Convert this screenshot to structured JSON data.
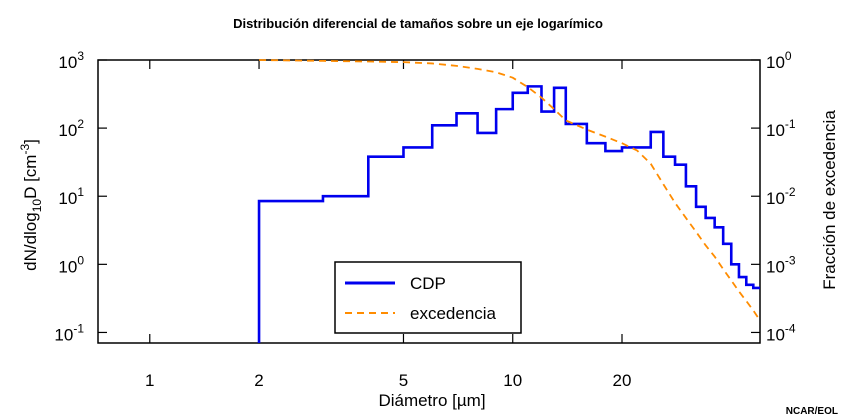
{
  "chart_data": {
    "type": "line",
    "title": "Distribución diferencial de tamaños sobre un eje logarímico",
    "xlabel": "Diámetro [µm]",
    "xlabel_pre": "Diámetro [",
    "xlabel_mu": "µ",
    "xlabel_post": "m]",
    "ylabel_left": "dN/dlog10D [cm-3]",
    "ylabel_left_parts": {
      "base": "dN/dlog",
      "sub": "10",
      "mid": "D [cm",
      "sup": "-3",
      "end": "]"
    },
    "ylabel_right": "Fracción de excedencia",
    "x_scale": "log",
    "y_scale": "log",
    "y2_scale": "log",
    "xlim": [
      0.72,
      48
    ],
    "ylim": [
      0.07,
      1000
    ],
    "y2lim": [
      7e-05,
      1
    ],
    "x_ticks": [
      1,
      2,
      5,
      10,
      20
    ],
    "x_ticklabels": [
      "1",
      "2",
      "5",
      "10",
      "20"
    ],
    "y_ticks": [
      {
        "value": 1000,
        "base": "10",
        "exp": "3"
      },
      {
        "value": 100,
        "base": "10",
        "exp": "2"
      },
      {
        "value": 10,
        "base": "10",
        "exp": "1"
      },
      {
        "value": 1,
        "base": "10",
        "exp": "0"
      },
      {
        "value": 0.1,
        "base": "10",
        "exp": "-1"
      }
    ],
    "y2_ticks": [
      {
        "value": 1,
        "base": "10",
        "exp": "0"
      },
      {
        "value": 0.1,
        "base": "10",
        "exp": "-1"
      },
      {
        "value": 0.01,
        "base": "10",
        "exp": "-2"
      },
      {
        "value": 0.001,
        "base": "10",
        "exp": "-3"
      },
      {
        "value": 0.0001,
        "base": "10",
        "exp": "-4"
      }
    ],
    "grid": false,
    "legend_position": "bottom-center",
    "series": [
      {
        "name": "CDP",
        "style": "step",
        "axis": "left",
        "color": "#0000ee",
        "bin_edges": [
          2,
          3,
          4,
          5,
          6,
          7,
          8,
          9,
          10,
          11,
          12,
          13,
          14,
          16,
          18,
          20,
          22,
          24,
          26,
          28,
          30,
          32,
          34,
          36,
          38,
          40,
          42,
          44,
          46,
          48
        ],
        "values": [
          8.5,
          10,
          38,
          52,
          110,
          165,
          85,
          190,
          330,
          410,
          175,
          390,
          115,
          60,
          46,
          52,
          52,
          88,
          38,
          29,
          14,
          7,
          4.8,
          3.5,
          2,
          1,
          0.65,
          0.5,
          0.45
        ]
      },
      {
        "name": "excedencia",
        "style": "dashed",
        "axis": "right",
        "color": "#ff8c00",
        "x": [
          2,
          3,
          4,
          5,
          6,
          7,
          8,
          9,
          10,
          11,
          12,
          13,
          14,
          16,
          18,
          20,
          22,
          24,
          26,
          28,
          30,
          32,
          34,
          36,
          38,
          40,
          42,
          44,
          46,
          48
        ],
        "y": [
          1.0,
          0.97,
          0.95,
          0.93,
          0.89,
          0.82,
          0.74,
          0.66,
          0.55,
          0.4,
          0.28,
          0.19,
          0.13,
          0.095,
          0.075,
          0.06,
          0.047,
          0.03,
          0.015,
          0.008,
          0.0048,
          0.003,
          0.0019,
          0.0013,
          0.00085,
          0.00058,
          0.0004,
          0.00029,
          0.00021,
          0.00015
        ]
      }
    ]
  },
  "legend": {
    "items": [
      {
        "label": "CDP",
        "color": "#0000ee",
        "dash": false
      },
      {
        "label": "excedencia",
        "color": "#ff8c00",
        "dash": true
      }
    ]
  },
  "credit": "NCAR/EOL"
}
